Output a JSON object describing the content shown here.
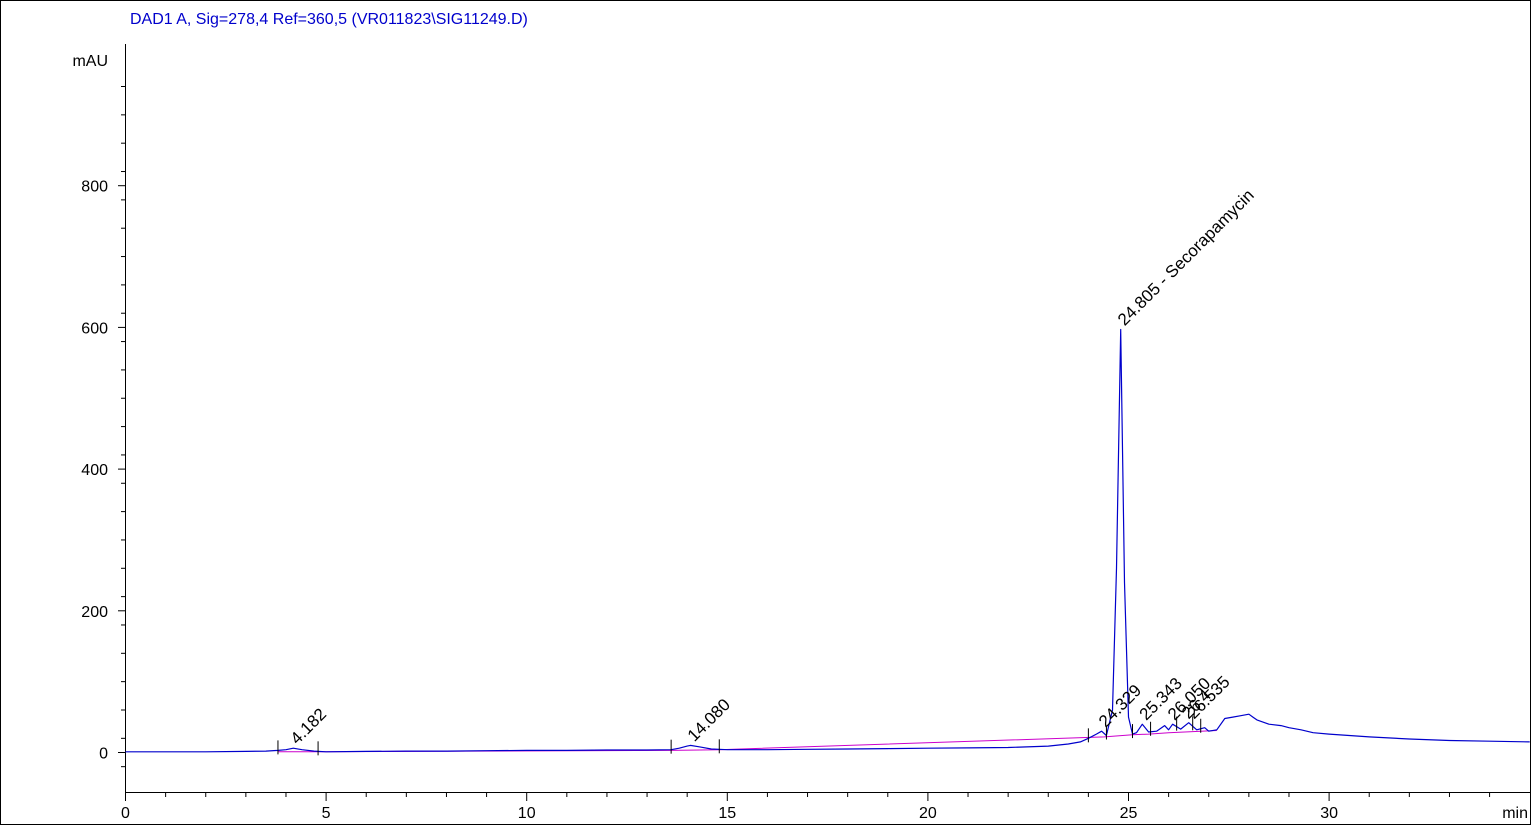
{
  "chart_data": {
    "type": "line",
    "title": "DAD1 A, Sig=278,4 Ref=360,5 (VR011823\\SIG11249.D)",
    "ylabel": "mAU",
    "xlabel": "min",
    "xlim": [
      0,
      35
    ],
    "ylim": [
      -40,
      1000
    ],
    "x_ticks": [
      0,
      5,
      10,
      15,
      20,
      25,
      30
    ],
    "x_tick_labels": [
      "0",
      "5",
      "10",
      "15",
      "20",
      "25",
      "30"
    ],
    "y_ticks": [
      0,
      200,
      400,
      600,
      800
    ],
    "y_tick_labels": [
      "0",
      "200",
      "400",
      "600",
      "800"
    ],
    "grid": false,
    "colors": {
      "signal": "#0000cc",
      "baseline": "#cc00cc",
      "title": "#0000cc",
      "axis": "#000000"
    },
    "signal": {
      "x": [
        0,
        1,
        2,
        3,
        3.5,
        3.8,
        4.0,
        4.182,
        4.4,
        4.7,
        5,
        6,
        7,
        8,
        9,
        10,
        11,
        12,
        13,
        13.6,
        13.8,
        14.0,
        14.08,
        14.3,
        14.6,
        15,
        16,
        17,
        18,
        19,
        20,
        21,
        22,
        23,
        23.5,
        23.8,
        24.0,
        24.2,
        24.329,
        24.45,
        24.6,
        24.7,
        24.805,
        24.9,
        25.0,
        25.1,
        25.2,
        25.343,
        25.5,
        25.7,
        25.9,
        26.0,
        26.1,
        26.3,
        26.5,
        26.7,
        26.9,
        27.0,
        27.2,
        27.4,
        27.6,
        27.8,
        28.0,
        28.1,
        28.2,
        28.5,
        28.8,
        29.0,
        29.3,
        29.6,
        30,
        30.5,
        31,
        32,
        33,
        34,
        35
      ],
      "y": [
        1,
        1,
        1,
        1.5,
        2,
        3,
        4,
        6,
        4,
        2,
        1,
        1.5,
        2,
        2,
        2.5,
        3,
        3,
        3.5,
        3.5,
        4,
        6,
        9,
        10,
        8,
        5,
        4,
        4,
        4.5,
        5,
        5.5,
        6,
        6.5,
        7,
        9,
        12,
        15,
        20,
        26,
        30,
        24,
        60,
        260,
        597,
        240,
        50,
        26,
        28,
        40,
        29,
        30,
        38,
        32,
        40,
        33,
        42,
        32,
        35,
        30,
        32,
        48,
        50,
        52,
        54,
        50,
        46,
        40,
        38,
        35,
        32,
        28,
        26,
        24,
        22,
        19,
        17,
        16,
        15
      ]
    },
    "baseline": {
      "x": [
        3.8,
        4.8,
        13.6,
        14.8,
        24.4,
        25.1,
        25.5,
        26.0,
        26.4,
        26.8,
        27.2
      ],
      "y": [
        1,
        1,
        3,
        4,
        22,
        25,
        26,
        28,
        29,
        30,
        31
      ]
    },
    "peaks": [
      {
        "rt": 4.182,
        "label": "4.182",
        "height": 6
      },
      {
        "rt": 14.08,
        "label": "14.080",
        "height": 10
      },
      {
        "rt": 24.329,
        "label": "24.329",
        "height": 30
      },
      {
        "rt": 24.805,
        "label": "24.805 - Secorapamycin",
        "height": 597
      },
      {
        "rt": 25.343,
        "label": "25.343",
        "height": 40
      },
      {
        "rt": 26.05,
        "label": "26.050",
        "height": 40
      },
      {
        "rt": 26.4,
        "label": "26.4",
        "height": 42
      },
      {
        "rt": 26.535,
        "label": "26.535",
        "height": 42
      }
    ],
    "integration_marks": [
      3.8,
      4.8,
      13.6,
      14.8,
      24.0,
      24.45,
      25.1,
      25.55,
      26.2,
      26.6,
      26.8
    ]
  }
}
